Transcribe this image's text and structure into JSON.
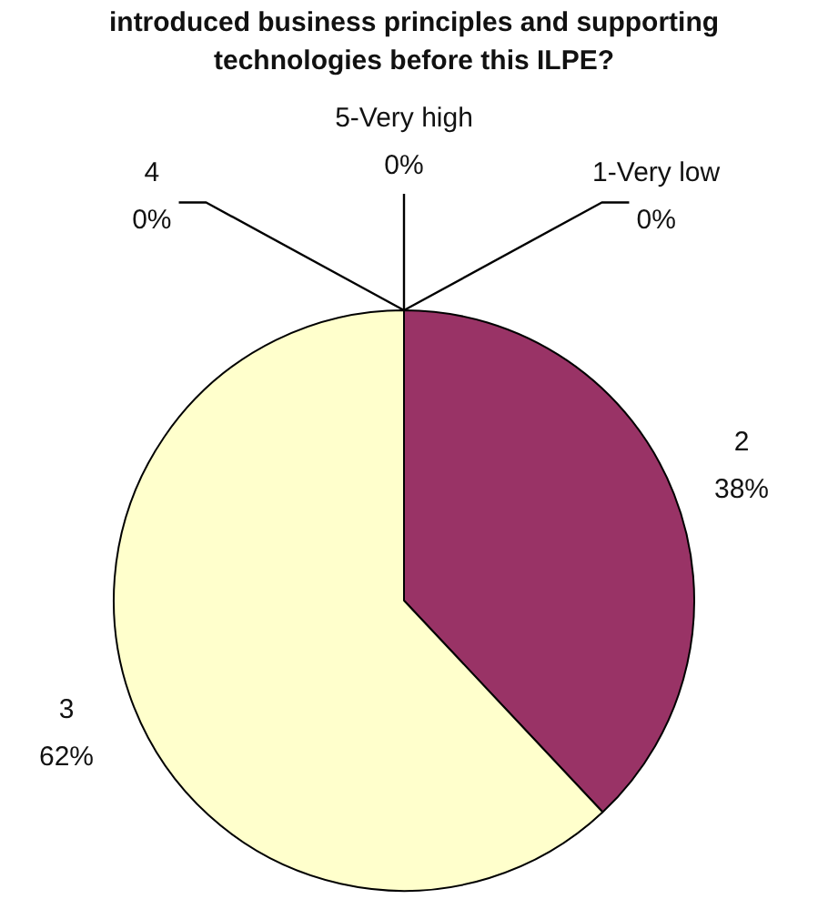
{
  "chart_data": {
    "type": "pie",
    "title": "introduced business principles and supporting technologies before this ILPE?",
    "categories": [
      "1-Very low",
      "2",
      "3",
      "4",
      "5-Very high"
    ],
    "values": [
      0,
      38,
      62,
      0,
      0
    ],
    "value_labels": [
      "0%",
      "38%",
      "62%",
      "0%",
      "0%"
    ],
    "colors": [
      null,
      "#993366",
      "#ffffcc",
      null,
      null
    ]
  }
}
